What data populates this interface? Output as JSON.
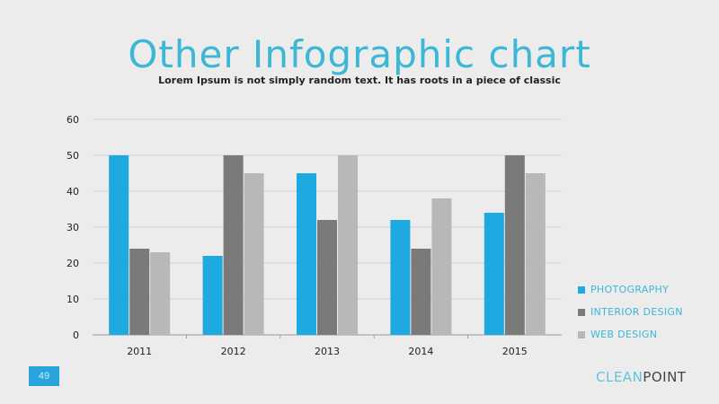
{
  "header": {
    "title": "Other Infographic chart",
    "subtitle": "Lorem Ipsum is not simply random text. It has roots in a piece of classic"
  },
  "footer": {
    "page_number": "49",
    "brand_part1": "CLEAN",
    "brand_part2": "POINT"
  },
  "legend": {
    "placement": "right",
    "items": [
      {
        "label": "PHOTOGRAPHY",
        "color": "#1ea9e0"
      },
      {
        "label": "INTERIOR DESIGN",
        "color": "#7a7a7a"
      },
      {
        "label": "WEB DESIGN",
        "color": "#b8b8b8"
      }
    ]
  },
  "chart_data": {
    "type": "bar",
    "categories": [
      "2011",
      "2012",
      "2013",
      "2014",
      "2015"
    ],
    "series": [
      {
        "name": "PHOTOGRAPHY",
        "color": "#1ea9e0",
        "values": [
          50,
          22,
          45,
          32,
          34
        ]
      },
      {
        "name": "INTERIOR DESIGN",
        "color": "#7a7a7a",
        "values": [
          24,
          50,
          32,
          24,
          50
        ]
      },
      {
        "name": "WEB DESIGN",
        "color": "#b8b8b8",
        "values": [
          23,
          45,
          50,
          38,
          45
        ]
      }
    ],
    "ylim": [
      0,
      60
    ],
    "yticks": [
      "0",
      "10",
      "20",
      "30",
      "40",
      "50",
      "60"
    ],
    "grid": true,
    "title": "Other Infographic chart",
    "xlabel": "",
    "ylabel": ""
  }
}
